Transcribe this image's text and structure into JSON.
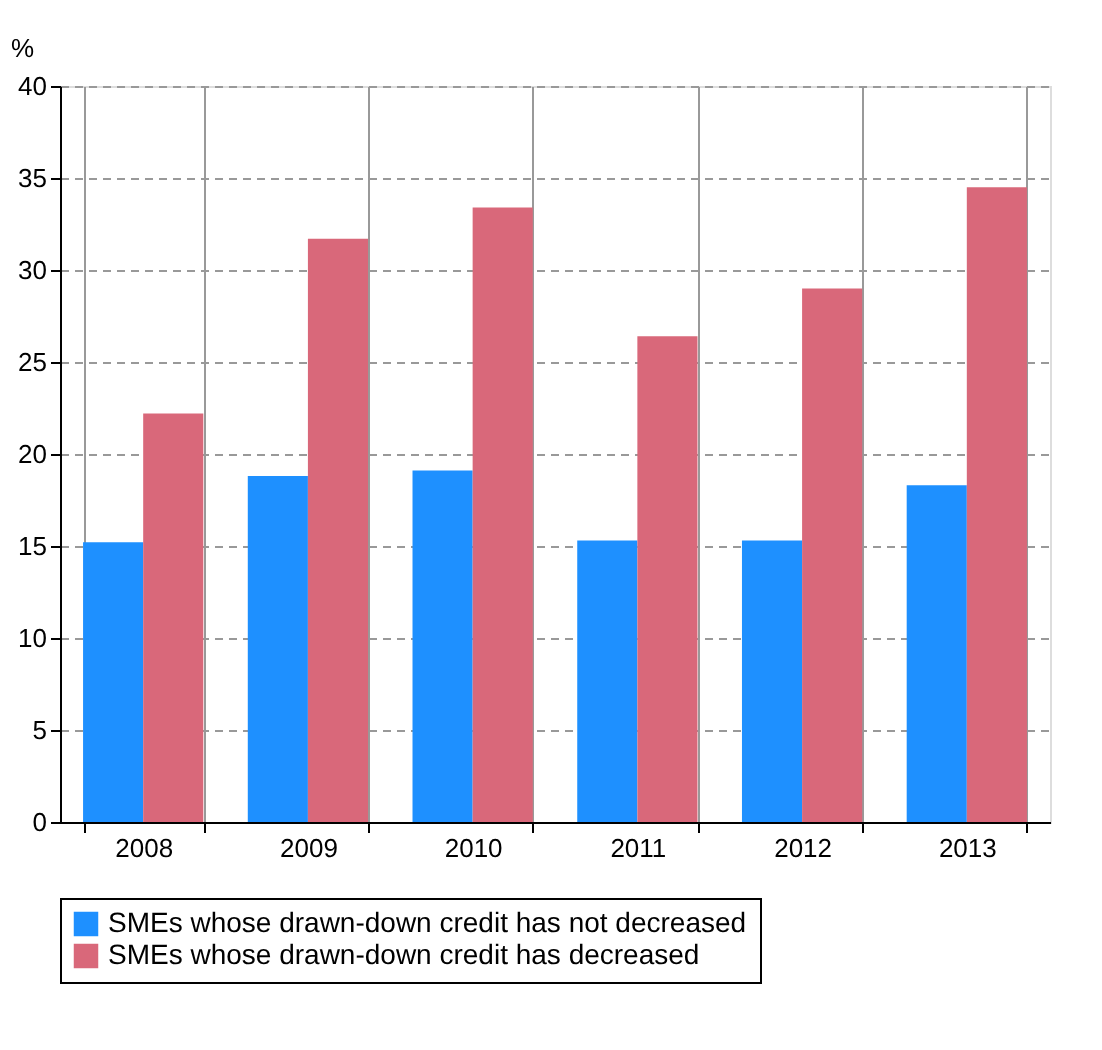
{
  "chart_data": {
    "type": "bar",
    "ylabel": "%",
    "categories": [
      "2008",
      "2009",
      "2010",
      "2011",
      "2012",
      "2013"
    ],
    "series": [
      {
        "name": "SMEs whose drawn-down credit has not decreased",
        "color": "#1e90ff",
        "values": [
          15.2,
          18.8,
          19.1,
          15.3,
          15.3,
          18.3
        ]
      },
      {
        "name": "SMEs whose drawn-down credit has decreased",
        "color": "#d9687a",
        "values": [
          22.2,
          31.7,
          33.4,
          26.4,
          29.0,
          34.5
        ]
      }
    ],
    "ylim": [
      0,
      40
    ],
    "yticks": [
      0,
      5,
      10,
      15,
      20,
      25,
      30,
      35,
      40
    ],
    "grid": true,
    "legend": "bottom"
  }
}
